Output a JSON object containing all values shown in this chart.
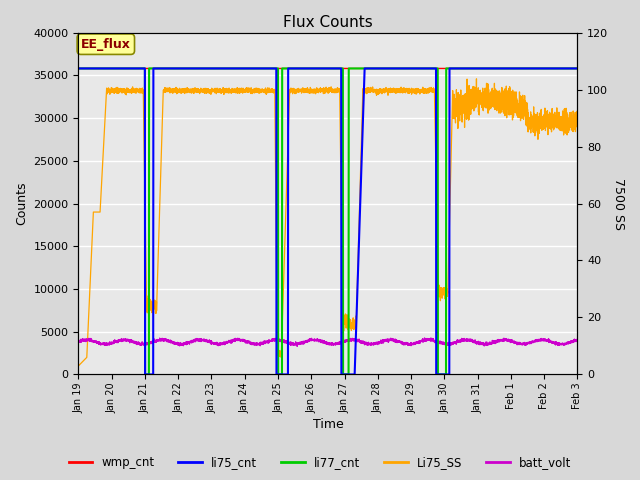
{
  "title": "Flux Counts",
  "ylabel_left": "Counts",
  "ylabel_right": "7500 SS",
  "xlabel": "Time",
  "ylim_left": [
    0,
    40000
  ],
  "ylim_right": [
    0,
    120
  ],
  "annotation_text": "EE_flux",
  "annotation_color": "#8B0000",
  "annotation_bg": "#FFFF99",
  "fig_bg_color": "#D8D8D8",
  "plot_bg_color": "#E8E8E8",
  "grid_color": "white",
  "colors": {
    "wmp_cnt": "#FF0000",
    "li75_cnt": "#0000FF",
    "li77_cnt": "#00CC00",
    "Li75_SS": "#FFA500",
    "batt_volt": "#CC00CC"
  },
  "x_tick_labels": [
    "Jan 19",
    "Jan 20",
    "Jan 21",
    "Jan 22",
    "Jan 23",
    "Jan 24",
    "Jan 25",
    "Jan 26",
    "Jan 27",
    "Jan 28",
    "Jan 29",
    "Jan 30",
    "Jan 31",
    "Feb 1",
    "Feb 2",
    "Feb 3"
  ],
  "yticks_left": [
    0,
    5000,
    10000,
    15000,
    20000,
    25000,
    30000,
    35000,
    40000
  ],
  "yticks_right": [
    0,
    20,
    40,
    60,
    80,
    100,
    120
  ],
  "figsize": [
    6.4,
    4.8
  ],
  "dpi": 100
}
